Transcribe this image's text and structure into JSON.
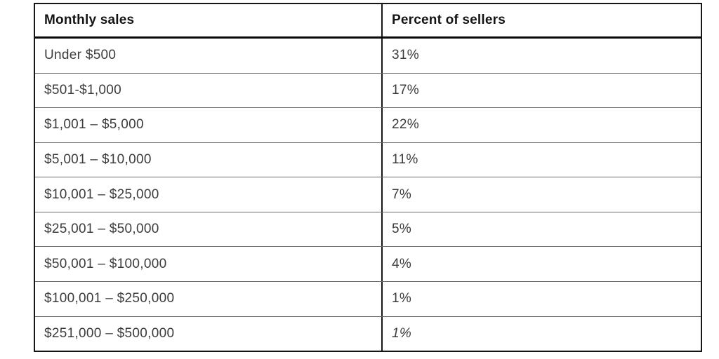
{
  "chart_data": {
    "type": "table",
    "title": "",
    "columns": [
      "Monthly sales",
      "Percent of sellers"
    ],
    "rows": [
      [
        "Under $500",
        "31%"
      ],
      [
        "$501-$1,000",
        "17%"
      ],
      [
        "$1,001 – $5,000",
        "22%"
      ],
      [
        "$5,001 – $10,000",
        "11%"
      ],
      [
        "$10,001 – $25,000",
        "7%"
      ],
      [
        "$25,001 – $50,000",
        "5%"
      ],
      [
        "$50,001 – $100,000",
        "4%"
      ],
      [
        "$100,001 – $250,000",
        "1%"
      ],
      [
        "$251,000 – $500,000",
        "1%"
      ]
    ],
    "values": [
      31,
      17,
      22,
      11,
      7,
      5,
      4,
      1,
      1
    ],
    "notes": "last row percent value rendered in italics",
    "colors": {
      "outer_border": "#161616",
      "header_rule": "#0a0a0a",
      "row_divider": "#6b6b6b",
      "header_text": "#141414",
      "body_text": "#3c3c3c",
      "background": "#ffffff"
    }
  }
}
